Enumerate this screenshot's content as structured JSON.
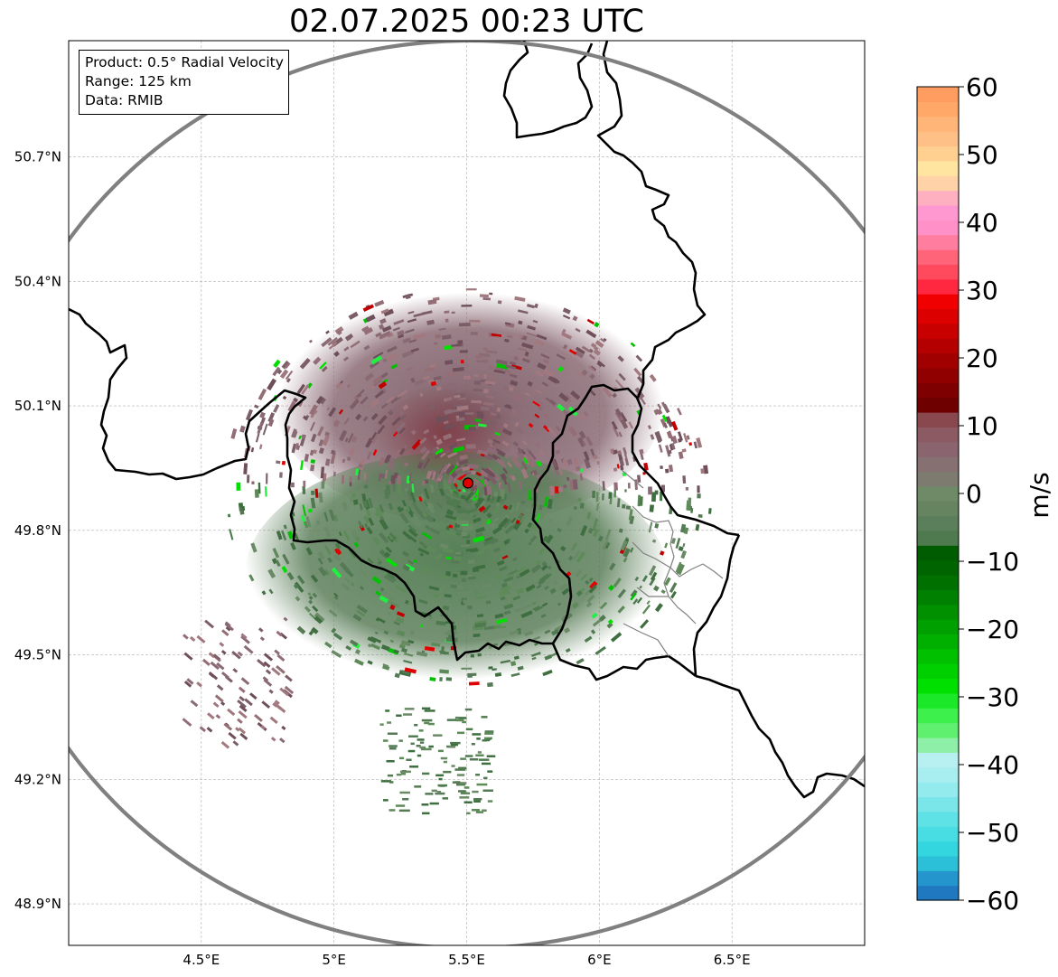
{
  "title": "02.07.2025 00:23 UTC",
  "info": {
    "product": "Product: 0.5° Radial Velocity",
    "range": "Range: 125 km",
    "source": "Data: RMIB"
  },
  "map": {
    "lon_range": [
      4.0,
      7.0
    ],
    "lat_range": [
      48.8,
      50.98
    ],
    "lon_ticks": [
      {
        "value": 4.5,
        "label": "4.5°E"
      },
      {
        "value": 5.0,
        "label": "5°E"
      },
      {
        "value": 5.5,
        "label": "5.5°E"
      },
      {
        "value": 6.0,
        "label": "6°E"
      },
      {
        "value": 6.5,
        "label": "6.5°E"
      }
    ],
    "lat_ticks": [
      {
        "value": 50.7,
        "label": "50.7°N"
      },
      {
        "value": 50.4,
        "label": "50.4°N"
      },
      {
        "value": 50.1,
        "label": "50.1°N"
      },
      {
        "value": 49.8,
        "label": "49.8°N"
      },
      {
        "value": 49.5,
        "label": "49.5°N"
      },
      {
        "value": 49.2,
        "label": "49.2°N"
      },
      {
        "value": 48.9,
        "label": "48.9°N"
      }
    ],
    "radar_site": {
      "lon": 5.505,
      "lat": 49.914
    },
    "range_km": 125,
    "grid": true
  },
  "colorbar": {
    "label": "m/s",
    "min": -60,
    "max": 60,
    "ticks": [
      {
        "value": 60,
        "label": "60"
      },
      {
        "value": 50,
        "label": "50"
      },
      {
        "value": 40,
        "label": "40"
      },
      {
        "value": 30,
        "label": "30"
      },
      {
        "value": 20,
        "label": "20"
      },
      {
        "value": 10,
        "label": "10"
      },
      {
        "value": 0,
        "label": "0"
      },
      {
        "value": -10,
        "label": "−10"
      },
      {
        "value": -20,
        "label": "−20"
      },
      {
        "value": -30,
        "label": "−30"
      },
      {
        "value": -40,
        "label": "−40"
      },
      {
        "value": -50,
        "label": "−50"
      },
      {
        "value": -60,
        "label": "−60"
      }
    ],
    "colors": [
      "#1f78c0",
      "#2596cd",
      "#2cc0d8",
      "#33d6de",
      "#48dde2",
      "#5fe2e6",
      "#7ae6ea",
      "#94ebee",
      "#a8eef0",
      "#b8f0f2",
      "#8ef0a8",
      "#60f070",
      "#3ef04c",
      "#1ce82a",
      "#00e000",
      "#00d000",
      "#00c000",
      "#00b000",
      "#00a000",
      "#009000",
      "#008000",
      "#007000",
      "#006400",
      "#005c00",
      "#4f7a4f",
      "#5a7f5a",
      "#65845f",
      "#6e8a66",
      "#7d7b70",
      "#867072",
      "#8a6570",
      "#8c5a62",
      "#88484e",
      "#6e0000",
      "#7e0000",
      "#900000",
      "#a00000",
      "#b40000",
      "#c80000",
      "#dc0000",
      "#f00000",
      "#ff2840",
      "#ff4a5e",
      "#ff6478",
      "#ff7ea0",
      "#ff90c8",
      "#ff98d0",
      "#ffb0c0",
      "#ffd2a8",
      "#ffe5a0",
      "#ffd090",
      "#ffc088",
      "#ffb478",
      "#ffa868",
      "#ff9c60"
    ]
  }
}
